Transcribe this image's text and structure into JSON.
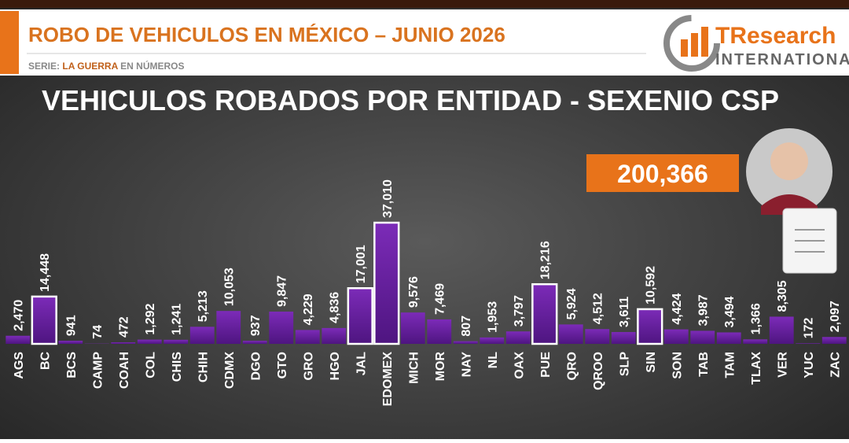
{
  "header": {
    "title": "ROBO DE VEHICULOS EN MÉXICO – JUNIO 2026",
    "series_prefix": "SERIE:",
    "series_name": "LA GUERRA",
    "series_suffix": "EN NÚMEROS",
    "logo_main": "TResearch",
    "logo_sub": "INTERNATIONAL",
    "total": "200,366"
  },
  "chart_data": {
    "type": "bar",
    "title": "VEHICULOS ROBADOS POR ENTIDAD  - SEXENIO CSP",
    "color": "#6a1fa0",
    "highlight_color": "#ffffff",
    "highlighted": [
      1,
      13,
      14,
      20,
      24
    ],
    "categories": [
      "AGS",
      "BC",
      "BCS",
      "CAMP",
      "COAH",
      "COL",
      "CHIS",
      "CHIH",
      "CDMX",
      "DGO",
      "GTO",
      "GRO",
      "HGO",
      "JAL",
      "EDOMEX",
      "MICH",
      "MOR",
      "NAY",
      "NL",
      "OAX",
      "PUE",
      "QRO",
      "QROO",
      "SLP",
      "SIN",
      "SON",
      "TAB",
      "TAM",
      "TLAX",
      "VER",
      "YUC",
      "ZAC"
    ],
    "values": [
      2470,
      14448,
      941,
      74,
      472,
      1292,
      1241,
      5213,
      10053,
      937,
      9847,
      4229,
      4836,
      17001,
      37010,
      9576,
      7469,
      807,
      1953,
      3797,
      18216,
      5924,
      4512,
      3611,
      10592,
      4424,
      3987,
      3494,
      1366,
      8305,
      172,
      2097
    ],
    "value_labels": [
      "2,470",
      "14,448",
      "941",
      "74",
      "472",
      "1,292",
      "1,241",
      "5,213",
      "10,053",
      "937",
      "9,847",
      "4,229",
      "4,836",
      "17,001",
      "37,010",
      "9,576",
      "7,469",
      "807",
      "1,953",
      "3,797",
      "18,216",
      "5,924",
      "4,512",
      "3,611",
      "10,592",
      "4,424",
      "3,987",
      "3,494",
      "1,366",
      "8,305",
      "172",
      "2,097"
    ]
  }
}
